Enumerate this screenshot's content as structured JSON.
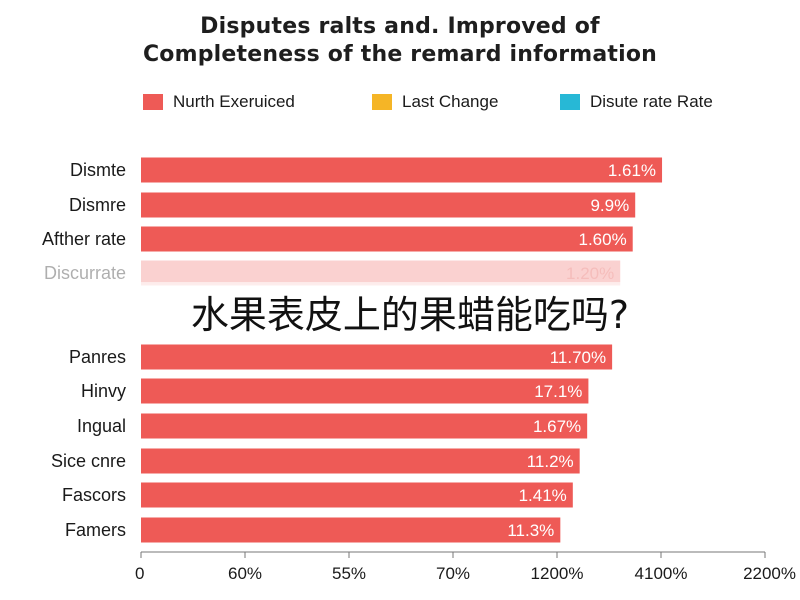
{
  "chart_data": {
    "type": "bar",
    "orientation": "horizontal",
    "title_line1": "Disputes ralts and. Improved of",
    "title_line2": "Completeness of the remard information",
    "legend": [
      {
        "label": "Nurth Exeruiced",
        "color": "#ee5a56"
      },
      {
        "label": "Last Change",
        "color": "#f5b526"
      },
      {
        "label": "Disute rate Rate",
        "color": "#27b8d6"
      }
    ],
    "categories": [
      "Dismte",
      "Dismre",
      "Afther rate",
      "Discurrate",
      "Panres",
      "Hinvy",
      "Ingual",
      "Sice cnre",
      "Fascors",
      "Famers"
    ],
    "values_fraction": [
      0.835,
      0.792,
      0.788,
      0.768,
      0.755,
      0.717,
      0.715,
      0.703,
      0.692,
      0.672
    ],
    "data_labels": [
      "1.61%",
      "9.9%",
      "1.60%",
      "1.20%",
      "11.70%",
      "17.1%",
      "1.67%",
      "11.2%",
      "1.41%",
      "11.3%"
    ],
    "faded": [
      false,
      false,
      false,
      true,
      false,
      false,
      false,
      false,
      false,
      false
    ],
    "x_ticks": [
      "0",
      "60%",
      "55%",
      "70%",
      "1200%",
      "4100%",
      "2200%"
    ],
    "bar_color": "#ee5a56",
    "grid": false
  },
  "overlay_text": "水果表皮上的果蜡能吃吗?"
}
